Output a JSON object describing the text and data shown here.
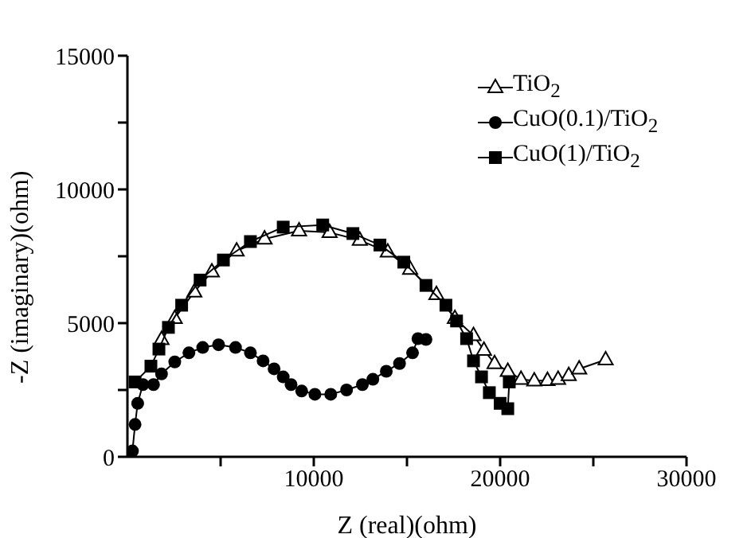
{
  "chart_data": {
    "type": "line",
    "xlabel": "Z (real)(ohm)",
    "ylabel": "-Z (imaginary)(ohm)",
    "xlim": [
      0,
      30000
    ],
    "ylim": [
      0,
      15000
    ],
    "xticks": [
      {
        "value": 5000,
        "label": null
      },
      10000,
      {
        "value": 15000,
        "label": null
      },
      20000,
      {
        "value": 25000,
        "label": null
      },
      30000
    ],
    "yticks": [
      0,
      {
        "value": 2500,
        "label": null
      },
      5000,
      {
        "value": 7500,
        "label": null
      },
      10000,
      {
        "value": 12500,
        "label": null
      },
      15000
    ],
    "legend": "top right",
    "grid": false,
    "line_style": "solid",
    "series": [
      {
        "name": "TiO$_{2}$",
        "color": "#000000",
        "marker": "triangle",
        "x": [
          1830,
          2540,
          3590,
          4530,
          5860,
          7360,
          9210,
          10850,
          12470,
          13970,
          15170,
          16580,
          17570,
          18570,
          19130,
          19700,
          20410,
          21120,
          21830,
          22540,
          23110,
          23680,
          24240,
          25660
        ],
        "values": [
          4390,
          5180,
          6170,
          6920,
          7700,
          8150,
          8450,
          8390,
          8100,
          7660,
          7020,
          6070,
          5180,
          4540,
          3990,
          3490,
          3200,
          2900,
          2840,
          2860,
          2900,
          3040,
          3290,
          3630
        ]
      },
      {
        "name": "CuO(0.1)/TiO$_{2}$",
        "color": "#000000",
        "marker": "circle",
        "x": [
          270,
          410,
          550,
          830,
          1400,
          1830,
          2540,
          3300,
          4040,
          4890,
          5800,
          6600,
          7280,
          7870,
          8360,
          8780,
          9350,
          10060,
          10910,
          11760,
          12610,
          13170,
          13890,
          14600,
          15300,
          15590,
          16020
        ],
        "values": [
          220,
          1210,
          2000,
          2700,
          2700,
          3100,
          3550,
          3890,
          4090,
          4190,
          4090,
          3890,
          3590,
          3290,
          2990,
          2700,
          2460,
          2340,
          2340,
          2500,
          2700,
          2900,
          3200,
          3490,
          3890,
          4420,
          4390
        ]
      },
      {
        "name": "CuO(1)/TiO$_{2}$",
        "color": "#000000",
        "marker": "square",
        "x": [
          410,
          1260,
          1690,
          2200,
          2910,
          3900,
          5150,
          6600,
          8360,
          10480,
          12100,
          13550,
          14830,
          16020,
          17090,
          17660,
          18200,
          18570,
          19000,
          19420,
          20000,
          20410,
          20490
        ],
        "values": [
          2800,
          3390,
          4030,
          4840,
          5670,
          6610,
          7360,
          8050,
          8590,
          8670,
          8350,
          7920,
          7280,
          6410,
          5670,
          5080,
          4420,
          3590,
          2990,
          2400,
          2000,
          1800,
          2800
        ]
      }
    ]
  }
}
